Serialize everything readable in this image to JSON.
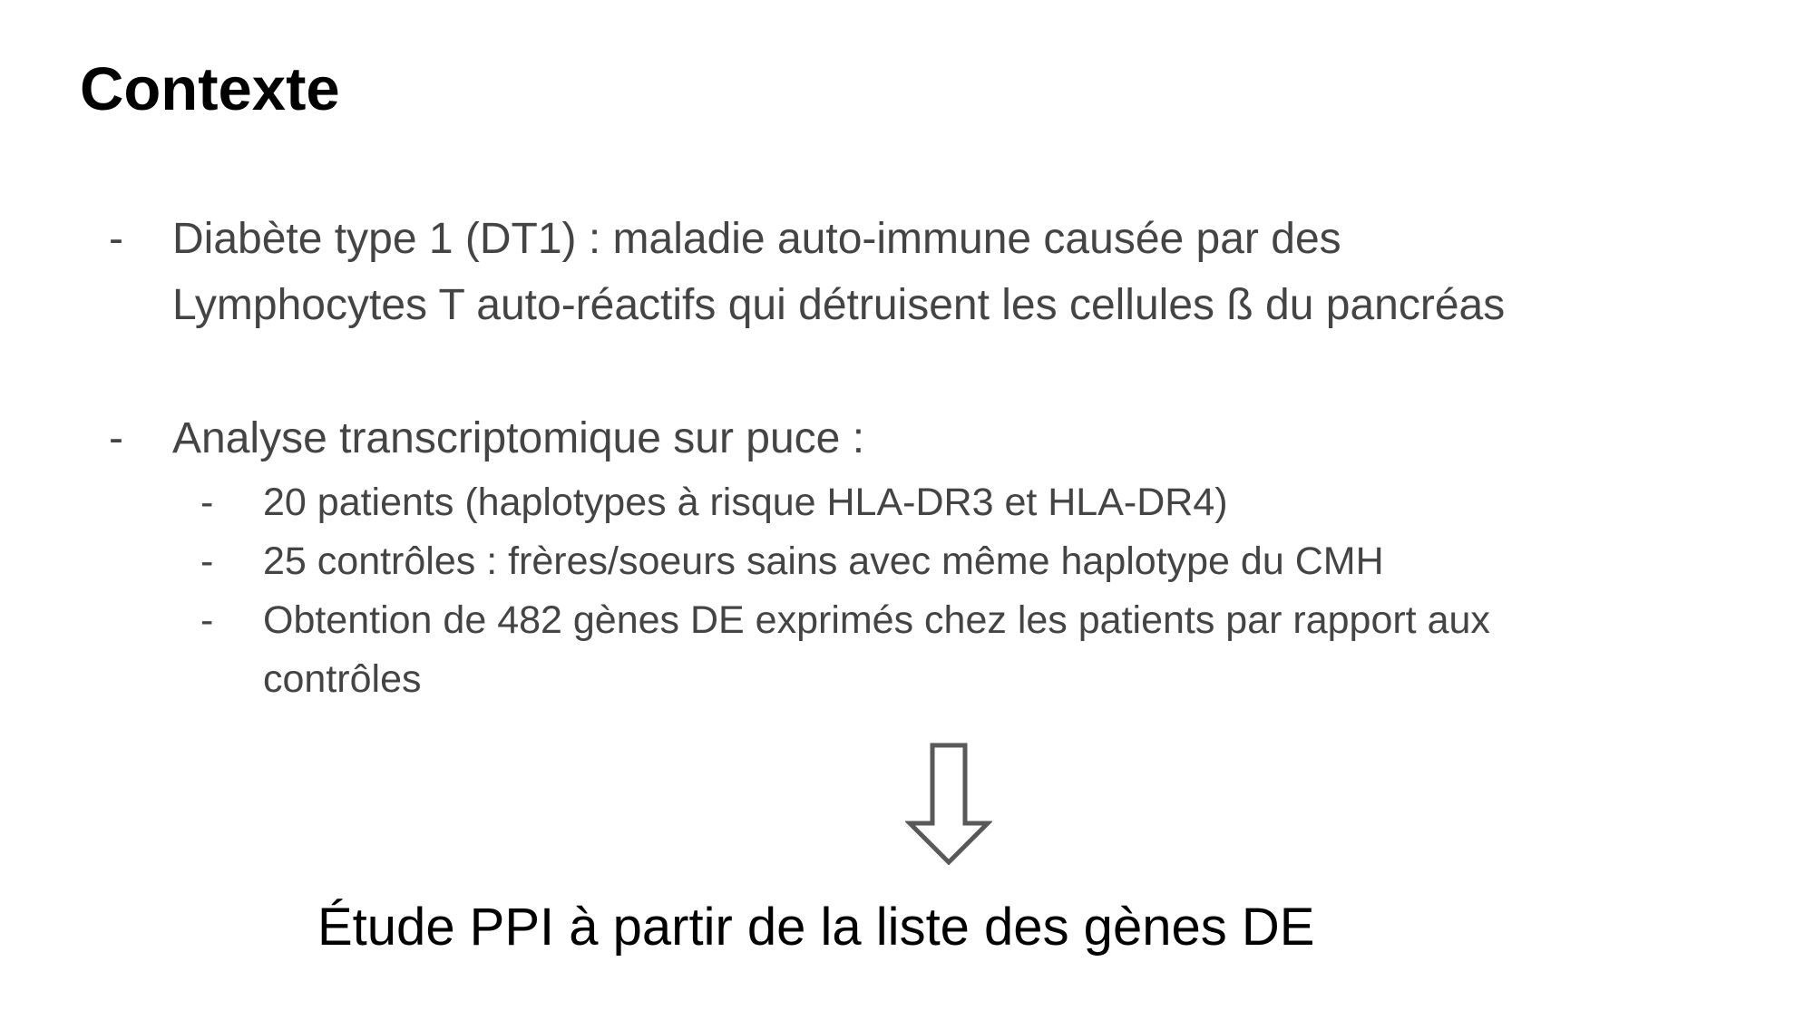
{
  "slide": {
    "title": "Contexte",
    "bullets": [
      {
        "marker": "-",
        "lines": [
          "Diabète type 1 (DT1) : maladie auto-immune causée par des",
          "Lymphocytes T auto-réactifs qui détruisent les cellules ß du pancréas"
        ]
      },
      {
        "marker": "-",
        "lines": [
          "Analyse transcriptomique sur puce :"
        ],
        "sub_items": [
          {
            "marker": "-",
            "lines": [
              "20 patients (haplotypes à risque HLA-DR3 et HLA-DR4)"
            ]
          },
          {
            "marker": "-",
            "lines": [
              "25 contrôles : frères/soeurs sains avec même haplotype du CMH"
            ]
          },
          {
            "marker": "-",
            "lines": [
              "Obtention de 482 gènes DE exprimés chez les patients par rapport aux",
              "contrôles"
            ]
          }
        ]
      }
    ],
    "arrow_icon": "down-arrow-outline-icon",
    "conclusion": "Étude PPI à partir de la liste des gènes DE",
    "colors": {
      "title": "#000000",
      "body_text": "#444444",
      "arrow": "#595959",
      "conclusion": "#000000"
    }
  }
}
